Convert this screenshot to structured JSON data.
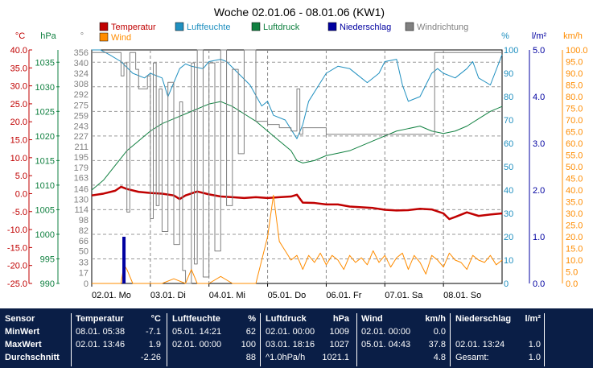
{
  "chart_data": {
    "type": "line",
    "title": "Woche 02.01.06 - 08.01.06 (KW1)",
    "legend": [
      {
        "label": "Temperatur",
        "color": "#c00000"
      },
      {
        "label": "Luftfeuchte",
        "color": "#2090c0"
      },
      {
        "label": "Luftdruck",
        "color": "#108040"
      },
      {
        "label": "Niederschlag",
        "color": "#0000a0"
      },
      {
        "label": "Windrichtung",
        "color": "#808080"
      },
      {
        "label": "Wind",
        "color": "#ff8c00"
      }
    ],
    "axes": {
      "temp": {
        "unit": "°C",
        "color": "#c00000",
        "min": -25,
        "max": 40,
        "ticks": [
          "40.0",
          "35.0",
          "30.0",
          "25.0",
          "20.0",
          "15.0",
          "10.0",
          "5.0",
          "0.0",
          "-5.0",
          "-10.0",
          "-15.0",
          "-20.0",
          "-25.0"
        ]
      },
      "press": {
        "unit": "hPa",
        "color": "#108040",
        "min": 990,
        "max": 1037.5,
        "ticks": [
          "1035",
          "1030",
          "1025",
          "1020",
          "1015",
          "1010",
          "1005",
          "1000",
          "995",
          "990"
        ]
      },
      "dir": {
        "unit": "°",
        "color": "#808080",
        "min": 0,
        "max": 360,
        "ticks": [
          "356",
          "340",
          "324",
          "308",
          "292",
          "275",
          "259",
          "243",
          "227",
          "211",
          "195",
          "179",
          "163",
          "146",
          "130",
          "114",
          "98",
          "82",
          "66",
          "50",
          "33",
          "17",
          "0"
        ]
      },
      "hum": {
        "unit": "%",
        "color": "#2090c0",
        "min": 0,
        "max": 100,
        "ticks": [
          "100",
          "90",
          "80",
          "70",
          "60",
          "50",
          "40",
          "30",
          "20",
          "10",
          "0"
        ]
      },
      "rain": {
        "unit": "l/m²",
        "color": "#0000a0",
        "min": 0,
        "max": 5,
        "ticks": [
          "5.0",
          "4.0",
          "3.0",
          "2.0",
          "1.0",
          "0.0"
        ]
      },
      "wind": {
        "unit": "km/h",
        "color": "#ff8c00",
        "min": 0,
        "max": 100,
        "ticks": [
          "100.0",
          "95.0",
          "90.0",
          "85.0",
          "80.0",
          "75.0",
          "70.0",
          "65.0",
          "60.0",
          "55.0",
          "50.0",
          "45.0",
          "40.0",
          "35.0",
          "30.0",
          "25.0",
          "20.0",
          "15.0",
          "10.0",
          "5.0",
          "0.0"
        ]
      }
    },
    "x_range": [
      0,
      7
    ],
    "x_ticks": [
      "02.01. Mo",
      "03.01. Di",
      "04.01. Mi",
      "05.01. Do",
      "06.01. Fr",
      "07.01. Sa",
      "08.01. So"
    ],
    "series": [
      {
        "name": "Temperatur",
        "axis": "temp",
        "color": "#c00000",
        "width": 2.5,
        "x": [
          0,
          0.2,
          0.4,
          0.5,
          0.6,
          0.8,
          1.0,
          1.2,
          1.4,
          1.5,
          1.6,
          1.8,
          2.0,
          2.2,
          2.4,
          2.6,
          2.8,
          3.0,
          3.2,
          3.4,
          3.5,
          3.6,
          3.8,
          4.0,
          4.2,
          4.4,
          4.6,
          4.8,
          5.0,
          5.2,
          5.4,
          5.6,
          5.8,
          6.0,
          6.1,
          6.2,
          6.4,
          6.6,
          6.8,
          7.0
        ],
        "y": [
          -0.5,
          0,
          0.8,
          1.9,
          1.3,
          0.5,
          0.2,
          0,
          -0.5,
          -1.5,
          -0.5,
          0.6,
          -0.2,
          -0.8,
          -1.0,
          -1.2,
          -1.0,
          -1.2,
          -1.0,
          -0.8,
          -0.3,
          -2.5,
          -2.6,
          -3.0,
          -3.0,
          -3.6,
          -3.8,
          -4.0,
          -4.5,
          -4.7,
          -4.6,
          -4.2,
          -4.4,
          -5.5,
          -7.1,
          -6.5,
          -5.2,
          -6.2,
          -5.8,
          -5.5
        ]
      },
      {
        "name": "Luftfeuchte",
        "axis": "hum",
        "color": "#2090c0",
        "width": 1,
        "x": [
          0,
          0.15,
          0.3,
          0.5,
          0.7,
          0.9,
          1.0,
          1.2,
          1.3,
          1.5,
          1.6,
          1.7,
          1.9,
          2.0,
          2.2,
          2.3,
          2.5,
          2.7,
          2.9,
          3.0,
          3.1,
          3.3,
          3.5,
          3.6,
          3.7,
          3.9,
          4.0,
          4.2,
          4.4,
          4.6,
          4.7,
          4.9,
          5.0,
          5.2,
          5.3,
          5.4,
          5.6,
          5.8,
          5.9,
          6.0,
          6.2,
          6.4,
          6.5,
          6.6,
          6.8,
          7.0
        ],
        "y": [
          100,
          100,
          98,
          95,
          90,
          88,
          90,
          88,
          80,
          92,
          94,
          93,
          92,
          95,
          96,
          95,
          90,
          85,
          76,
          78,
          72,
          70,
          62,
          68,
          78,
          86,
          90,
          93,
          92,
          88,
          86,
          90,
          95,
          96,
          85,
          78,
          80,
          90,
          92,
          90,
          88,
          92,
          95,
          88,
          85,
          98
        ]
      },
      {
        "name": "Luftdruck",
        "axis": "press",
        "color": "#108040",
        "width": 1,
        "x": [
          0,
          0.2,
          0.4,
          0.6,
          0.8,
          1.0,
          1.2,
          1.4,
          1.6,
          1.8,
          2.0,
          2.2,
          2.4,
          2.6,
          2.8,
          3.0,
          3.2,
          3.4,
          3.5,
          3.6,
          3.8,
          4.0,
          4.2,
          4.4,
          4.6,
          4.8,
          5.0,
          5.2,
          5.4,
          5.6,
          5.8,
          6.0,
          6.2,
          6.4,
          6.6,
          6.8,
          7.0
        ],
        "y": [
          1009,
          1011,
          1014,
          1017,
          1019,
          1021,
          1022.5,
          1023.5,
          1024.5,
          1025.5,
          1026.5,
          1027,
          1026,
          1024.5,
          1023,
          1021,
          1019,
          1017,
          1015,
          1014.5,
          1015,
          1016,
          1016.5,
          1017,
          1018,
          1019,
          1020,
          1021,
          1021.5,
          1022,
          1021,
          1020.5,
          1021,
          1022,
          1023.5,
          1025,
          1026
        ]
      },
      {
        "name": "Windrichtung",
        "axis": "dir",
        "color": "#808080",
        "width": 1,
        "step": true,
        "x": [
          0,
          0.45,
          0.5,
          0.55,
          0.6,
          0.65,
          0.75,
          0.8,
          0.95,
          1.0,
          1.05,
          1.1,
          1.15,
          1.2,
          1.3,
          1.4,
          1.5,
          1.55,
          1.6,
          1.7,
          1.75,
          1.8,
          1.9,
          2.0,
          2.1,
          2.2,
          2.3,
          2.4,
          2.5,
          2.6,
          2.8,
          3.0,
          3.2,
          3.4,
          3.5,
          3.55,
          3.6,
          3.8,
          4.0,
          4.2,
          4.4,
          4.6,
          4.8,
          5.0,
          5.2,
          5.4,
          5.6,
          5.8,
          5.85,
          6.0,
          6.2,
          6.4,
          6.6,
          6.8,
          7.0
        ],
        "y": [
          356,
          356,
          320,
          340,
          110,
          356,
          330,
          300,
          320,
          100,
          340,
          120,
          300,
          80,
          310,
          60,
          280,
          20,
          0,
          340,
          30,
          360,
          10,
          340,
          50,
          360,
          120,
          330,
          200,
          360,
          250,
          245,
          240,
          235,
          300,
          230,
          240,
          240,
          230,
          230,
          230,
          230,
          230,
          230,
          230,
          230,
          230,
          230,
          356,
          356,
          356,
          356,
          356,
          356,
          356
        ]
      },
      {
        "name": "Wind",
        "axis": "wind",
        "color": "#ff8c00",
        "width": 1,
        "x": [
          0,
          0.5,
          0.55,
          0.6,
          0.7,
          0.8,
          1.0,
          1.2,
          1.4,
          1.6,
          1.7,
          1.8,
          2.0,
          2.2,
          2.4,
          2.6,
          2.8,
          3.0,
          3.1,
          3.2,
          3.3,
          3.4,
          3.5,
          3.6,
          3.7,
          3.8,
          3.9,
          4.0,
          4.1,
          4.2,
          4.3,
          4.4,
          4.5,
          4.6,
          4.7,
          4.8,
          4.9,
          5.0,
          5.1,
          5.2,
          5.3,
          5.4,
          5.5,
          5.6,
          5.7,
          5.8,
          5.9,
          6.0,
          6.1,
          6.2,
          6.3,
          6.4,
          6.5,
          6.6,
          6.7,
          6.8,
          6.9,
          7.0
        ],
        "y": [
          0,
          0,
          8,
          6,
          0,
          0,
          0,
          0,
          2,
          0,
          6,
          0,
          0,
          3,
          0,
          0,
          0,
          20,
          37.8,
          18,
          14,
          10,
          12,
          6,
          12,
          9,
          13,
          8,
          12,
          10,
          6,
          12,
          9,
          11,
          8,
          14,
          9,
          12,
          7,
          11,
          13,
          6,
          12,
          9,
          4,
          12,
          10,
          7,
          13,
          10,
          9,
          6,
          12,
          10,
          9,
          12,
          8,
          10
        ]
      },
      {
        "name": "Niederschlag",
        "axis": "rain",
        "color": "#0000a0",
        "width": 4,
        "bars": true,
        "x": [
          0.55
        ],
        "y": [
          1.0
        ]
      }
    ]
  },
  "stats": {
    "headers": {
      "sensor": "Sensor",
      "temp": "Temperatur",
      "temp_unit": "°C",
      "hum": "Luftfeuchte",
      "hum_unit": "%",
      "press": "Luftdruck",
      "press_unit": "hPa",
      "wind": "Wind",
      "wind_unit": "km/h",
      "rain": "Niederschlag",
      "rain_unit": "l/m²"
    },
    "rows": [
      {
        "label": "MinWert",
        "temp_time": "08.01.  05:38",
        "temp_val": "-7.1",
        "hum_time": "05.01.  14:21",
        "hum_val": "62",
        "press_time": "02.01.  00:00",
        "press_val": "1009",
        "wind_time": "02.01.  00:00",
        "wind_val": "0.0",
        "rain_time": "",
        "rain_val": ""
      },
      {
        "label": "MaxWert",
        "temp_time": "02.01.  13:46",
        "temp_val": "1.9",
        "hum_time": "02.01.  00:00",
        "hum_val": "100",
        "press_time": "03.01.  18:16",
        "press_val": "1027",
        "wind_time": "05.01.  04:43",
        "wind_val": "37.8",
        "rain_time": "02.01.  13:24",
        "rain_val": "1.0"
      },
      {
        "label": "Durchschnitt",
        "temp_time": "",
        "temp_val": "-2.26",
        "hum_time": "",
        "hum_val": "88",
        "press_time": "^1.0hPa/h",
        "press_val": "1021.1",
        "wind_time": "",
        "wind_val": "4.8",
        "rain_time": "Gesamt:",
        "rain_val": "1.0"
      }
    ]
  }
}
